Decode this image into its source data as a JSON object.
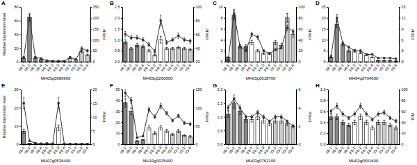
{
  "chart_data": [
    {
      "type": "bar",
      "title": "A",
      "x_label": "MH03g0686900",
      "y_label": "Relative Expression level",
      "y2_label": "FPKM",
      "categories": [
        "II8-1",
        "II8-2",
        "II8-3",
        "II8-4",
        "F8-1",
        "F8-2",
        "F8-3",
        "F8-4",
        "II3-1",
        "II3-2",
        "II3-3",
        "II3-4"
      ],
      "series": [
        {
          "type": "bar",
          "colors": [
            "#888888",
            "#888888",
            "#888888",
            "#888888",
            "#ffffff",
            "#ffffff",
            "#ffffff",
            "#ffffff",
            "#cccccc",
            "#cccccc",
            "#cccccc",
            "#cccccc"
          ],
          "values": [
            5,
            65,
            5,
            3,
            1,
            0.5,
            0.5,
            0.5,
            5,
            3,
            15,
            10
          ],
          "errors": [
            0.5,
            5,
            0.5,
            0.3,
            0.2,
            0.1,
            0.1,
            0.1,
            0.5,
            0.3,
            2,
            1
          ]
        },
        {
          "type": "line",
          "axis": "y2",
          "color": "#333333",
          "marker": "square",
          "values": [
            20,
            200,
            20,
            15,
            5,
            3,
            3,
            3,
            20,
            10,
            60,
            50
          ],
          "errors": [
            3,
            15,
            3,
            2,
            1,
            0.5,
            0.5,
            0.5,
            3,
            2,
            8,
            6
          ]
        }
      ],
      "ylim": [
        0,
        80
      ],
      "yticks": [
        0,
        20,
        40,
        60,
        80
      ],
      "y2lim": [
        0,
        250
      ],
      "y2ticks": [
        0,
        50,
        100,
        150,
        200,
        250
      ],
      "grid": false
    },
    {
      "type": "bar",
      "title": "B",
      "x_label": "MH03g0260900",
      "y2_label": "FPKM",
      "categories": [
        "II8-1",
        "II8-2",
        "II8-3",
        "II8-4",
        "F8-1",
        "F8-2",
        "F8-3",
        "F8-4",
        "II3-1",
        "II3-2",
        "II3-3",
        "II3-4"
      ],
      "series": [
        {
          "type": "bar",
          "colors": [
            "#888888",
            "#888888",
            "#888888",
            "#888888",
            "#ffffff",
            "#ffffff",
            "#ffffff",
            "#ffffff",
            "#cccccc",
            "#cccccc",
            "#cccccc",
            "#cccccc"
          ],
          "values": [
            0.9,
            0.6,
            0.75,
            0.7,
            0.5,
            0.3,
            1.0,
            0.6,
            0.6,
            0.65,
            0.6,
            0.55
          ],
          "errors": [
            0.1,
            0.05,
            0.08,
            0.06,
            0.05,
            0.04,
            0.15,
            0.05,
            0.05,
            0.06,
            0.05,
            0.05
          ]
        },
        {
          "type": "line",
          "axis": "y2",
          "color": "#333333",
          "marker": "square",
          "values": [
            60,
            55,
            55,
            52,
            45,
            35,
            80,
            48,
            52,
            58,
            52,
            50
          ],
          "errors": [
            4,
            3,
            3,
            3,
            3,
            3,
            8,
            3,
            3,
            4,
            3,
            3
          ]
        }
      ],
      "ylim": [
        0,
        2.5
      ],
      "yticks": [
        {
          "value": 0,
          "label": "0.0"
        },
        0.5,
        {
          "value": 1,
          "label": "1.0"
        },
        1.5,
        {
          "value": 2,
          "label": "2.0"
        },
        2.5
      ],
      "y2lim": [
        20,
        100
      ],
      "y2ticks": [
        20,
        40,
        60,
        80,
        100
      ],
      "grid": false
    },
    {
      "type": "bar",
      "title": "C",
      "x_label": "MH03g0018700",
      "y2_label": "FPKM",
      "categories": [
        "II8-1",
        "II8-2",
        "II8-3",
        "II8-4",
        "F8-1",
        "F8-2",
        "F8-3",
        "F8-4",
        "II3-1",
        "II3-2",
        "II3-3",
        "II3-4"
      ],
      "series": [
        {
          "type": "bar",
          "colors": [
            "#888888",
            "#888888",
            "#888888",
            "#888888",
            "#ffffff",
            "#ffffff",
            "#ffffff",
            "#ffffff",
            "#cccccc",
            "#cccccc",
            "#cccccc",
            "#cccccc"
          ],
          "values": [
            0.8,
            8.5,
            2.8,
            2.8,
            3.5,
            2.0,
            1.5,
            1.5,
            3.5,
            3.0,
            8.0,
            5.0
          ],
          "errors": [
            0.1,
            0.8,
            0.3,
            0.3,
            0.4,
            0.2,
            0.15,
            0.15,
            0.4,
            0.3,
            0.8,
            0.5
          ]
        },
        {
          "type": "line",
          "axis": "y2",
          "color": "#333333",
          "marker": "square",
          "values": [
            3,
            88,
            28,
            20,
            50,
            45,
            20,
            15,
            22,
            25,
            62,
            55
          ],
          "errors": [
            0.5,
            8,
            3,
            2,
            4,
            4,
            2,
            1.5,
            2,
            2,
            5,
            4
          ]
        }
      ],
      "ylim": [
        0,
        10
      ],
      "yticks": [
        0,
        2,
        4,
        6,
        8,
        10
      ],
      "y2lim": [
        0,
        100
      ],
      "y2ticks": [
        0,
        20,
        40,
        60,
        80,
        100
      ],
      "grid": false
    },
    {
      "type": "bar",
      "title": "D",
      "x_label": "MH04g0704000",
      "y2_label": "FPKM",
      "categories": [
        "II8-1",
        "II8-2",
        "II8-3",
        "II8-4",
        "F8-1",
        "F8-2",
        "F8-3",
        "F8-4",
        "II3-1",
        "II3-2",
        "II3-3",
        "II3-4"
      ],
      "series": [
        {
          "type": "bar",
          "colors": [
            "#888888",
            "#888888",
            "#888888",
            "#888888",
            "#ffffff",
            "#ffffff",
            "#ffffff",
            "#ffffff",
            "#cccccc",
            "#cccccc",
            "#cccccc",
            "#cccccc"
          ],
          "values": [
            2,
            17,
            8,
            5,
            5,
            4,
            3,
            2,
            0.5,
            0.5,
            0.5,
            0.3
          ],
          "errors": [
            0.3,
            1.5,
            0.8,
            0.5,
            0.6,
            0.4,
            0.3,
            0.2,
            0.1,
            0.1,
            0.1,
            0.05
          ]
        },
        {
          "type": "line",
          "axis": "y2",
          "color": "#333333",
          "marker": "square",
          "values": [
            1.5,
            12,
            5,
            4,
            3,
            3,
            2,
            2,
            1,
            1,
            1,
            0.8
          ],
          "errors": [
            0.2,
            1,
            0.4,
            0.3,
            0.3,
            0.3,
            0.2,
            0.2,
            0.1,
            0.1,
            0.1,
            0.08
          ]
        }
      ],
      "ylim": [
        0,
        25
      ],
      "yticks": [
        0,
        5,
        10,
        15,
        20,
        25
      ],
      "y2lim": [
        0,
        15
      ],
      "y2ticks": [
        0,
        3,
        6,
        9,
        12,
        15
      ],
      "grid": false
    },
    {
      "type": "bar",
      "title": "E",
      "x_label": "MH07g0536400",
      "y_label": "Relative Expression level",
      "y2_label": "FPKM",
      "categories": [
        "II8-1",
        "II8-2",
        "II8-3",
        "II8-4",
        "F8-1",
        "F8-2",
        "F8-3",
        "F8-4",
        "II3-1",
        "II3-2",
        "II3-3",
        "II3-4"
      ],
      "series": [
        {
          "type": "bar",
          "colors": [
            "#888888",
            "#888888",
            "#888888",
            "#888888",
            "#ffffff",
            "#ffffff",
            "#ffffff",
            "#ffffff",
            "#cccccc",
            "#cccccc",
            "#cccccc",
            "#cccccc"
          ],
          "values": [
            7,
            0.5,
            0.3,
            0.2,
            0.2,
            0.2,
            9,
            0.2,
            0.1,
            0.1,
            0.1,
            0.1
          ],
          "errors": [
            1.2,
            0.08,
            0.05,
            0.03,
            0.03,
            0.03,
            1.5,
            0.03,
            0.02,
            0.02,
            0.02,
            0.02
          ]
        },
        {
          "type": "line",
          "axis": "y2",
          "color": "#333333",
          "marker": "square",
          "values": [
            15,
            1.2,
            0.4,
            0.2,
            0.3,
            0.2,
            15,
            0.1,
            0.1,
            0.1,
            0.1,
            0.1
          ],
          "errors": [
            2,
            0.15,
            0.06,
            0.03,
            0.04,
            0.03,
            2,
            0.02,
            0.02,
            0.02,
            0.02,
            0.02
          ]
        }
      ],
      "ylim": [
        0,
        30
      ],
      "yticks": [
        0,
        10,
        20,
        30
      ],
      "y2lim": [
        0,
        20
      ],
      "y2ticks": [
        0,
        5,
        10,
        15,
        20
      ],
      "grid": false
    },
    {
      "type": "bar",
      "title": "F",
      "x_label": "MH10g0025400",
      "y2_label": "FPKM",
      "categories": [
        "II8-1",
        "II8-2",
        "II8-3",
        "II8-4",
        "F8-1",
        "F8-2",
        "F8-3",
        "F8-4",
        "II3-1",
        "II3-2",
        "II3-3",
        "II3-4"
      ],
      "series": [
        {
          "type": "bar",
          "colors": [
            "#888888",
            "#888888",
            "#888888",
            "#888888",
            "#ffffff",
            "#ffffff",
            "#ffffff",
            "#ffffff",
            "#cccccc",
            "#cccccc",
            "#cccccc",
            "#cccccc"
          ],
          "values": [
            38,
            30,
            3,
            4,
            15,
            10,
            15,
            12,
            9,
            12,
            8,
            7
          ],
          "errors": [
            4,
            3,
            0.4,
            0.4,
            2,
            1.5,
            2,
            1.5,
            1,
            1.5,
            0.8,
            0.8
          ]
        },
        {
          "type": "line",
          "axis": "y2",
          "color": "#333333",
          "marker": "square",
          "values": [
            140,
            120,
            18,
            22,
            95,
            75,
            105,
            85,
            65,
            78,
            58,
            55
          ],
          "errors": [
            10,
            8,
            2,
            2,
            7,
            5,
            7,
            5,
            4,
            5,
            4,
            4
          ]
        }
      ],
      "ylim": [
        0,
        50
      ],
      "yticks": [
        0,
        10,
        20,
        30,
        40,
        50
      ],
      "y2lim": [
        0,
        150
      ],
      "y2ticks": [
        0,
        50,
        100,
        150
      ],
      "grid": false
    },
    {
      "type": "bar",
      "title": "G",
      "x_label": "MH03g0762100",
      "y2_label": "FPKM",
      "categories": [
        "II8-1",
        "II8-2",
        "II8-3",
        "II8-4",
        "F8-1",
        "F8-2",
        "F8-3",
        "F8-4",
        "II3-1",
        "II3-2",
        "II3-3",
        "II3-4"
      ],
      "series": [
        {
          "type": "bar",
          "colors": [
            "#888888",
            "#888888",
            "#888888",
            "#888888",
            "#ffffff",
            "#ffffff",
            "#ffffff",
            "#ffffff",
            "#cccccc",
            "#cccccc",
            "#cccccc",
            "#cccccc"
          ],
          "values": [
            1.1,
            1.5,
            1.2,
            0.9,
            0.9,
            1.0,
            0.85,
            0.75,
            0.85,
            0.85,
            0.75,
            0.65
          ],
          "errors": [
            0.12,
            0.18,
            0.12,
            0.09,
            0.09,
            0.1,
            0.09,
            0.08,
            0.08,
            0.08,
            0.07,
            0.06
          ]
        },
        {
          "type": "line",
          "axis": "y2",
          "color": "#333333",
          "marker": "square",
          "values": [
            4.0,
            5.0,
            4.0,
            3.0,
            3.0,
            3.5,
            3.0,
            2.5,
            3.0,
            3.0,
            2.5,
            2.0
          ],
          "errors": [
            0.3,
            0.4,
            0.3,
            0.2,
            0.2,
            0.25,
            0.2,
            0.15,
            0.2,
            0.2,
            0.15,
            0.1
          ]
        }
      ],
      "ylim": [
        0,
        2
      ],
      "yticks": [
        {
          "value": 0,
          "label": "0.0"
        },
        0.5,
        {
          "value": 1,
          "label": "1.0"
        },
        1.5,
        {
          "value": 2,
          "label": "2.0"
        }
      ],
      "y2lim": [
        0,
        6
      ],
      "y2ticks": [
        0,
        2,
        4,
        6
      ],
      "grid": false
    },
    {
      "type": "bar",
      "title": "H",
      "x_label": "MH03g0501600",
      "y2_label": "TPM",
      "categories": [
        "II8-1",
        "II8-2",
        "II8-3",
        "II8-4",
        "F8-1",
        "F8-2",
        "F8-3",
        "F8-4",
        "II3-1",
        "II3-2",
        "II3-3",
        "II3-4"
      ],
      "series": [
        {
          "type": "bar",
          "colors": [
            "#888888",
            "#888888",
            "#888888",
            "#888888",
            "#ffffff",
            "#ffffff",
            "#ffffff",
            "#ffffff",
            "#cccccc",
            "#cccccc",
            "#cccccc",
            "#cccccc"
          ],
          "values": [
            0.5,
            0.5,
            0.4,
            0.35,
            0.4,
            0.5,
            0.4,
            0.3,
            0.4,
            0.4,
            0.35,
            0.3
          ],
          "errors": [
            0.05,
            0.05,
            0.04,
            0.03,
            0.04,
            0.05,
            0.04,
            0.03,
            0.04,
            0.04,
            0.03,
            0.03
          ]
        },
        {
          "type": "line",
          "axis": "y2",
          "color": "#333333",
          "marker": "square",
          "values": [
            60,
            70,
            55,
            48,
            55,
            70,
            55,
            45,
            55,
            58,
            48,
            42
          ],
          "errors": [
            4,
            5,
            4,
            3,
            4,
            5,
            4,
            3,
            4,
            4,
            3,
            3
          ]
        }
      ],
      "ylim": [
        0,
        1
      ],
      "yticks": [
        {
          "value": 0,
          "label": "0.0"
        },
        0.2,
        0.4,
        0.6,
        0.8,
        {
          "value": 1,
          "label": "1.0"
        }
      ],
      "y2lim": [
        0,
        100
      ],
      "y2ticks": [
        0,
        20,
        40,
        60,
        80,
        100
      ],
      "grid": false
    }
  ]
}
